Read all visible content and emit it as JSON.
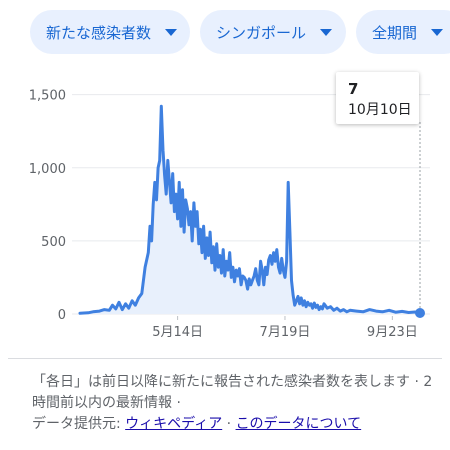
{
  "filters": [
    {
      "label": "新たな感染者数"
    },
    {
      "label": "シンガポール"
    },
    {
      "label": "全期間"
    }
  ],
  "tooltip": {
    "value": "7",
    "date": "10月10日"
  },
  "colors": {
    "line": "#3f80e0",
    "fill": "#e8f0fc",
    "chip_bg": "#e8f0fe",
    "chip_text": "#1967d2"
  },
  "footnote": {
    "text": "「各日」は前日以降に新たに報告された感染者数を表します · 2 時間前以内の最新情報 ·",
    "source_label": "データ提供元:",
    "source_link": "ウィキペディア",
    "about_link": "このデータについて"
  },
  "chart_data": {
    "type": "area",
    "title": "",
    "xlabel": "",
    "ylabel": "",
    "y_ticks": [
      "0",
      "500",
      "1,000",
      "1,500"
    ],
    "ylim": [
      0,
      1600
    ],
    "x_ticks": [
      "5月14日",
      "7月19日",
      "9月23日"
    ],
    "x_tick_days": [
      60,
      126,
      192
    ],
    "x_start": "3月15日",
    "grid": true,
    "series": [
      {
        "values": [
          [
            0,
            5
          ],
          [
            5,
            8
          ],
          [
            8,
            15
          ],
          [
            12,
            20
          ],
          [
            15,
            30
          ],
          [
            18,
            25
          ],
          [
            20,
            60
          ],
          [
            22,
            35
          ],
          [
            24,
            80
          ],
          [
            26,
            30
          ],
          [
            28,
            70
          ],
          [
            30,
            40
          ],
          [
            32,
            90
          ],
          [
            34,
            60
          ],
          [
            36,
            110
          ],
          [
            38,
            140
          ],
          [
            40,
            320
          ],
          [
            42,
            420
          ],
          [
            43,
            600
          ],
          [
            44,
            500
          ],
          [
            45,
            750
          ],
          [
            46,
            900
          ],
          [
            47,
            780
          ],
          [
            48,
            1000
          ],
          [
            49,
            1050
          ],
          [
            50,
            1420
          ],
          [
            51,
            1120
          ],
          [
            52,
            950
          ],
          [
            53,
            820
          ],
          [
            54,
            1050
          ],
          [
            55,
            900
          ],
          [
            56,
            760
          ],
          [
            57,
            960
          ],
          [
            58,
            700
          ],
          [
            59,
            820
          ],
          [
            60,
            650
          ],
          [
            61,
            900
          ],
          [
            62,
            600
          ],
          [
            63,
            850
          ],
          [
            64,
            560
          ],
          [
            65,
            780
          ],
          [
            66,
            720
          ],
          [
            67,
            610
          ],
          [
            68,
            700
          ],
          [
            69,
            500
          ],
          [
            70,
            760
          ],
          [
            71,
            600
          ],
          [
            72,
            700
          ],
          [
            73,
            480
          ],
          [
            74,
            580
          ],
          [
            75,
            420
          ],
          [
            76,
            600
          ],
          [
            77,
            380
          ],
          [
            78,
            520
          ],
          [
            79,
            400
          ],
          [
            80,
            560
          ],
          [
            81,
            350
          ],
          [
            82,
            460
          ],
          [
            83,
            300
          ],
          [
            84,
            480
          ],
          [
            85,
            320
          ],
          [
            86,
            400
          ],
          [
            87,
            280
          ],
          [
            88,
            440
          ],
          [
            89,
            260
          ],
          [
            90,
            360
          ],
          [
            91,
            300
          ],
          [
            92,
            420
          ],
          [
            93,
            250
          ],
          [
            94,
            320
          ],
          [
            95,
            220
          ],
          [
            96,
            300
          ],
          [
            97,
            260
          ],
          [
            98,
            310
          ],
          [
            99,
            200
          ],
          [
            100,
            260
          ],
          [
            101,
            250
          ],
          [
            102,
            230
          ],
          [
            103,
            170
          ],
          [
            104,
            240
          ],
          [
            105,
            200
          ],
          [
            106,
            230
          ],
          [
            107,
            260
          ],
          [
            108,
            310
          ],
          [
            109,
            230
          ],
          [
            110,
            200
          ],
          [
            111,
            360
          ],
          [
            112,
            300
          ],
          [
            113,
            200
          ],
          [
            114,
            320
          ],
          [
            115,
            270
          ],
          [
            116,
            370
          ],
          [
            117,
            400
          ],
          [
            118,
            340
          ],
          [
            119,
            420
          ],
          [
            120,
            360
          ],
          [
            121,
            440
          ],
          [
            122,
            320
          ],
          [
            123,
            280
          ],
          [
            124,
            380
          ],
          [
            125,
            300
          ],
          [
            126,
            250
          ],
          [
            127,
            360
          ],
          [
            128,
            900
          ],
          [
            129,
            560
          ],
          [
            130,
            230
          ],
          [
            131,
            130
          ],
          [
            132,
            60
          ],
          [
            133,
            90
          ],
          [
            134,
            120
          ],
          [
            135,
            70
          ],
          [
            136,
            110
          ],
          [
            137,
            60
          ],
          [
            138,
            90
          ],
          [
            139,
            50
          ],
          [
            140,
            80
          ],
          [
            141,
            60
          ],
          [
            142,
            70
          ],
          [
            143,
            40
          ],
          [
            144,
            75
          ],
          [
            145,
            45
          ],
          [
            146,
            60
          ],
          [
            147,
            30
          ],
          [
            148,
            50
          ],
          [
            149,
            35
          ],
          [
            150,
            70
          ],
          [
            152,
            40
          ],
          [
            154,
            50
          ],
          [
            156,
            25
          ],
          [
            158,
            40
          ],
          [
            160,
            20
          ],
          [
            162,
            30
          ],
          [
            164,
            15
          ],
          [
            166,
            25
          ],
          [
            170,
            20
          ],
          [
            174,
            15
          ],
          [
            178,
            30
          ],
          [
            182,
            20
          ],
          [
            186,
            15
          ],
          [
            190,
            25
          ],
          [
            194,
            12
          ],
          [
            198,
            18
          ],
          [
            202,
            10
          ],
          [
            206,
            14
          ],
          [
            209,
            7
          ]
        ]
      }
    ]
  }
}
